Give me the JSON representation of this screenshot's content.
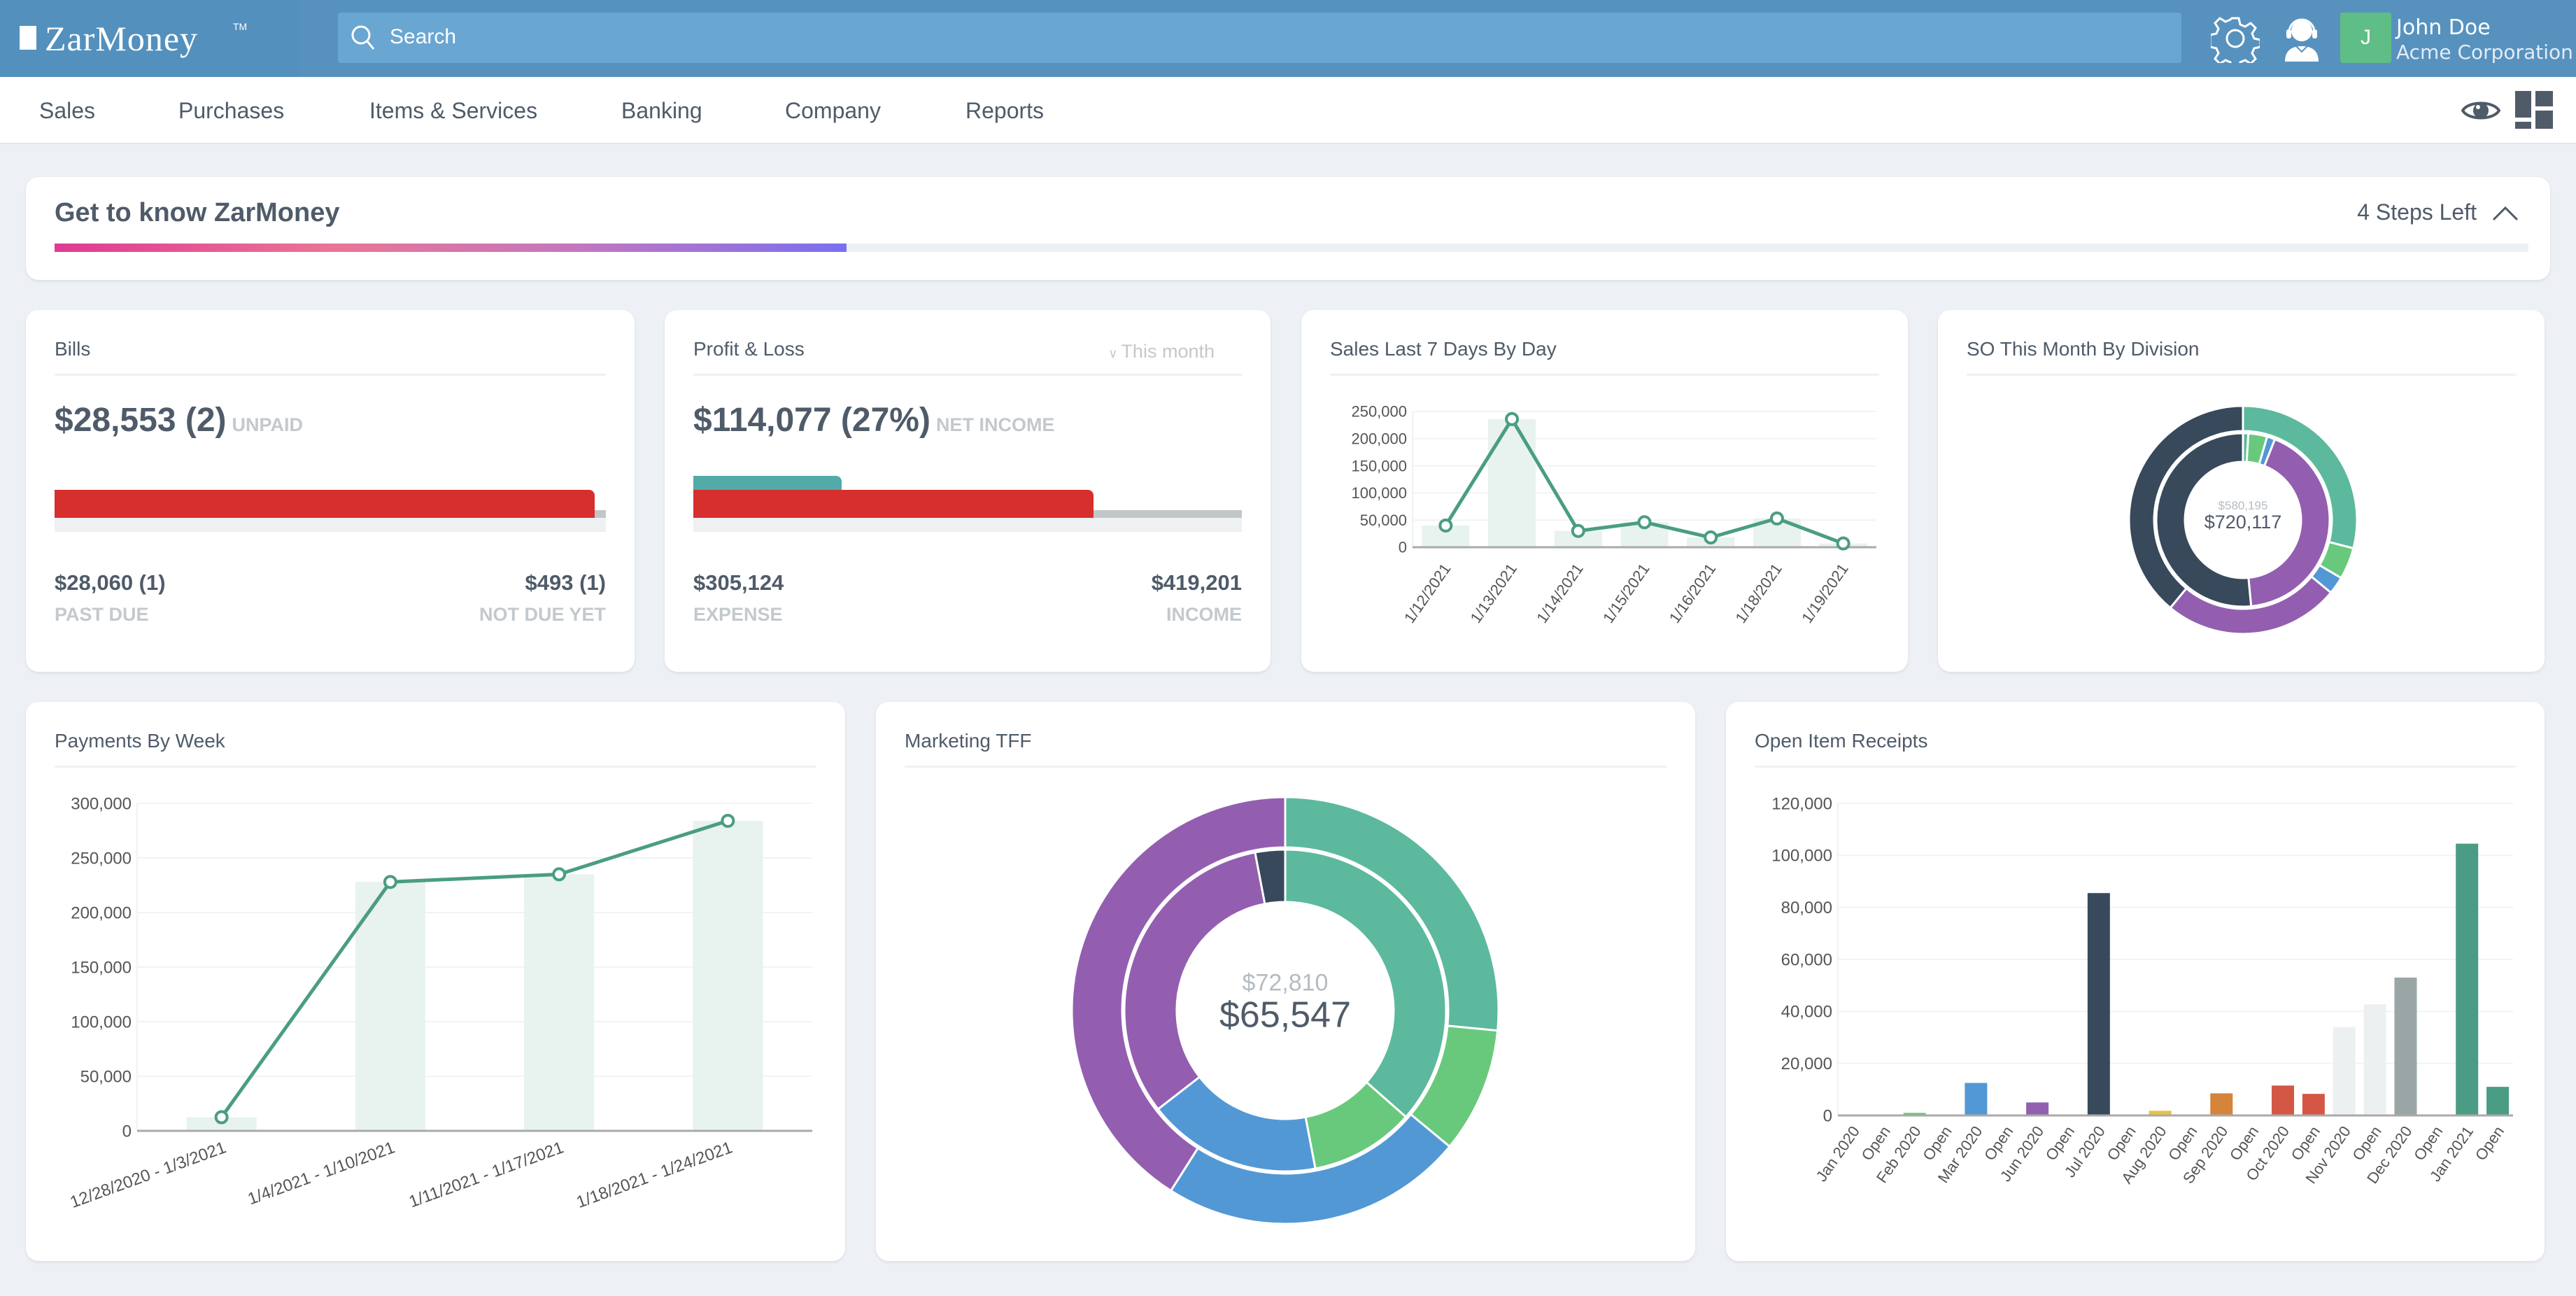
{
  "header": {
    "logo": "ZarMoney",
    "logo_tm": "TM",
    "search_placeholder": "Search",
    "user_initial": "J",
    "user_name": "John Doe",
    "company": "Acme Corporation"
  },
  "nav": [
    "Sales",
    "Purchases",
    "Items & Services",
    "Banking",
    "Company",
    "Reports"
  ],
  "onboarding": {
    "title": "Get to know ZarMoney",
    "steps_left": "4 Steps Left",
    "progress_percent": 32
  },
  "bills": {
    "title": "Bills",
    "amount": "$28,553 (2)",
    "amount_label": "UNPAID",
    "past_due": "$28,060 (1)",
    "past_due_label": "PAST DUE",
    "not_due": "$493 (1)",
    "not_due_label": "NOT DUE YET",
    "past_due_fraction": 0.98
  },
  "pnl": {
    "title": "Profit & Loss",
    "filter": "This month",
    "amount": "$114,077 (27%)",
    "amount_label": "NET INCOME",
    "expense": "$305,124",
    "expense_label": "EXPENSE",
    "income": "$419,201",
    "income_label": "INCOME",
    "net_fraction": 0.27,
    "expense_fraction": 0.73
  },
  "colors": {
    "teal": "#5cb99d",
    "green": "#68c97c",
    "blue": "#5298d5",
    "purple": "#935eb0",
    "dark": "#37495b",
    "line": "#4a9d82",
    "barlight": "#e8f2ef"
  },
  "chart_data": [
    {
      "id": "sales",
      "type": "bar+line",
      "title": "Sales Last 7 Days By Day",
      "categories": [
        "1/12/2021",
        "1/13/2021",
        "1/14/2021",
        "1/15/2021",
        "1/16/2021",
        "1/18/2021",
        "1/19/2021"
      ],
      "values": [
        40000,
        236000,
        30000,
        46000,
        18000,
        53000,
        7000
      ],
      "ylim": [
        0,
        250000
      ],
      "yticks": [
        "0",
        "50,000",
        "100,000",
        "150,000",
        "200,000",
        "250,000"
      ],
      "ytick_values": [
        0,
        50000,
        100000,
        150000,
        200000,
        250000
      ]
    },
    {
      "id": "so",
      "type": "pie",
      "title": "SO This Month By Division",
      "center_top": "$580,195",
      "center_main": "$720,117",
      "outer": [
        {
          "color": "teal",
          "value": 29
        },
        {
          "color": "green",
          "value": 4.5
        },
        {
          "color": "blue",
          "value": 2.5
        },
        {
          "color": "purple",
          "value": 25
        },
        {
          "color": "dark",
          "value": 39
        }
      ],
      "inner": [
        {
          "color": "teal",
          "value": 1
        },
        {
          "color": "green",
          "value": 3.5
        },
        {
          "color": "blue",
          "value": 1.5
        },
        {
          "color": "purple",
          "value": 42.5
        },
        {
          "color": "dark",
          "value": 51.5
        }
      ]
    },
    {
      "id": "payments",
      "type": "bar+line",
      "title": "Payments By Week",
      "categories": [
        "12/28/2020 - 1/3/2021",
        "1/4/2021 - 1/10/2021",
        "1/11/2021 - 1/17/2021",
        "1/18/2021 - 1/24/2021"
      ],
      "values": [
        12500,
        228000,
        235000,
        284000
      ],
      "ylim": [
        0,
        300000
      ],
      "yticks": [
        "0",
        "50,000",
        "100,000",
        "150,000",
        "200,000",
        "250,000",
        "300,000"
      ],
      "ytick_values": [
        0,
        50000,
        100000,
        150000,
        200000,
        250000,
        300000
      ]
    },
    {
      "id": "marketing",
      "type": "pie",
      "title": "Marketing TFF",
      "center_top": "$72,810",
      "center_main": "$65,547",
      "outer": [
        {
          "color": "teal",
          "value": 26.5
        },
        {
          "color": "green",
          "value": 9.5
        },
        {
          "color": "blue",
          "value": 23
        },
        {
          "color": "purple",
          "value": 41
        }
      ],
      "inner": [
        {
          "color": "teal",
          "value": 36.5
        },
        {
          "color": "green",
          "value": 10.5
        },
        {
          "color": "blue",
          "value": 17.5
        },
        {
          "color": "purple",
          "value": 32.5
        },
        {
          "color": "dark",
          "value": 3
        }
      ]
    },
    {
      "id": "receipts",
      "type": "bar",
      "title": "Open Item Receipts",
      "categories": [
        "Jan 2020",
        "Open",
        "Feb 2020",
        "Open",
        "Mar 2020",
        "Open",
        "Jun 2020",
        "Open",
        "Jul 2020",
        "Open",
        "Aug 2020",
        "Open",
        "Sep 2020",
        "Open",
        "Oct 2020",
        "Open",
        "Nov 2020",
        "Open",
        "Dec 2020",
        "Open",
        "Jan 2021",
        "Open"
      ],
      "values": [
        0,
        0,
        1000,
        0,
        12500,
        0,
        5000,
        0,
        85500,
        0,
        1800,
        0,
        8500,
        0,
        11500,
        8300,
        34000,
        42700,
        53000,
        0,
        104500,
        11000
      ],
      "bar_colors": [
        "#5cb99d",
        "#5cb99d",
        "#68c77b",
        "#68c77b",
        "#5298d5",
        "#5298d5",
        "#925fb1",
        "#925fb1",
        "#37495b",
        "#37495b",
        "#e9c23c",
        "#e9c23c",
        "#d5843b",
        "#d5843b",
        "#d45745",
        "#d45745",
        "#ecf0f1",
        "#ecf0f1",
        "#9aa5a6",
        "#9aa5a6",
        "#4b9c84",
        "#4b9c84"
      ],
      "ylim": [
        0,
        120000
      ],
      "yticks": [
        "0",
        "20,000",
        "40,000",
        "60,000",
        "80,000",
        "100,000",
        "120,000"
      ],
      "ytick_values": [
        0,
        20000,
        40000,
        60000,
        80000,
        100000,
        120000
      ]
    }
  ]
}
